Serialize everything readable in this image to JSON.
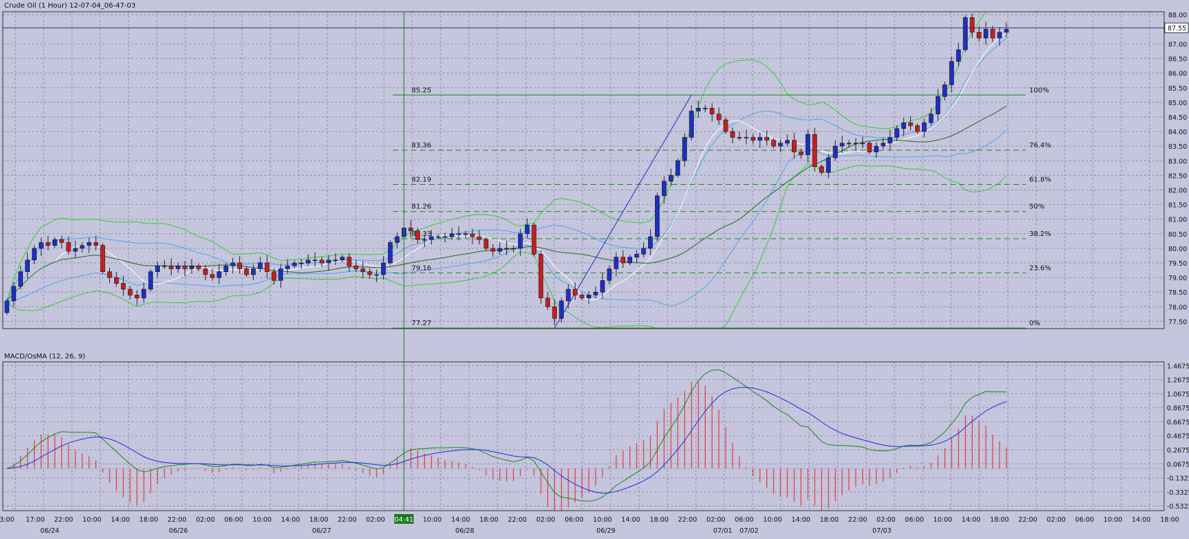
{
  "header": {
    "title": "Crude Oil (1 Hour) 12-07-04_06-47-03"
  },
  "macd_panel": {
    "title": "MACD/OsMA (12, 26, 9)"
  },
  "colors": {
    "background": "#c5c5dd",
    "up_candle": "#1e2fc4",
    "down_candle": "#c81e1e",
    "fib_line": "#188a18",
    "bollinger_outer": "#2fd02f",
    "bollinger_inner": "#4aa6f0",
    "sma_white": "#ffffff",
    "sma_dark_green": "#1d6b1d",
    "macd_line": "#178a17",
    "signal_line": "#1a2fd0",
    "osma_bars": "#e23a3a",
    "trend_line": "#1a2fb8"
  },
  "crosshair_time_label": "04:41",
  "current_price_label": "87.55",
  "chart_data": [
    {
      "type": "candlestick",
      "title": "Crude Oil (1 Hour) 12-07-04_06-47-03",
      "ylim": [
        77.25,
        88.1
      ],
      "y_ticks": [
        "88.00",
        "87.55",
        "87.00",
        "86.50",
        "86.00",
        "85.50",
        "85.00",
        "84.50",
        "84.00",
        "83.50",
        "83.00",
        "82.50",
        "82.00",
        "81.50",
        "81.00",
        "80.50",
        "80.00",
        "79.50",
        "79.00",
        "78.50",
        "78.00",
        "77.50"
      ],
      "x_tick_labels": [
        "3:00",
        "17:00",
        "22:00",
        "10:00",
        "14:00",
        "18:00",
        "22:00",
        "02:00",
        "06:00",
        "10:00",
        "14:00",
        "18:00",
        "22:00",
        "02:00",
        "04:41",
        "10:00",
        "14:00",
        "18:00",
        "22:00",
        "02:00",
        "06:00",
        "10:00",
        "14:00",
        "18:00",
        "22:00",
        "02:00",
        "06:00",
        "10:00",
        "14:00",
        "18:00",
        "22:00",
        "02:00",
        "06:00",
        "10:00",
        "14:00",
        "18:00",
        "22:00",
        "02:00",
        "06:00",
        "10:00",
        "14:00",
        "18:00"
      ],
      "date_labels": [
        "06/24",
        "06/26",
        "06/27",
        "06/28",
        "06/29",
        "07/01",
        "07/02",
        "07/03"
      ],
      "close_prices": [
        78.2,
        78.7,
        79.2,
        79.6,
        80.0,
        80.2,
        80.1,
        80.3,
        80.2,
        79.9,
        80.0,
        80.1,
        80.2,
        80.1,
        79.2,
        79.0,
        78.8,
        78.6,
        78.4,
        78.3,
        78.6,
        79.2,
        79.4,
        79.4,
        79.3,
        79.4,
        79.3,
        79.4,
        79.3,
        79.1,
        79.0,
        79.2,
        79.4,
        79.5,
        79.3,
        79.1,
        79.3,
        79.5,
        79.2,
        78.9,
        79.3,
        79.4,
        79.5,
        79.5,
        79.6,
        79.6,
        79.5,
        79.6,
        79.6,
        79.7,
        79.4,
        79.3,
        79.2,
        79.1,
        79.1,
        79.5,
        80.2,
        80.4,
        80.7,
        80.6,
        80.3,
        80.3,
        80.4,
        80.4,
        80.4,
        80.5,
        80.5,
        80.5,
        80.4,
        80.3,
        80.0,
        79.9,
        80.0,
        80.0,
        80.0,
        80.5,
        80.8,
        79.8,
        78.3,
        78.0,
        77.6,
        78.2,
        78.6,
        78.4,
        78.3,
        78.4,
        78.5,
        78.9,
        79.3,
        79.7,
        79.5,
        79.7,
        79.8,
        80.0,
        80.4,
        81.8,
        82.3,
        82.5,
        83.0,
        83.8,
        84.7,
        84.8,
        84.8,
        84.6,
        84.4,
        84.0,
        83.8,
        83.8,
        83.8,
        83.7,
        83.8,
        83.7,
        83.5,
        83.6,
        83.7,
        83.3,
        83.2,
        83.9,
        82.8,
        82.6,
        83.1,
        83.5,
        83.6,
        83.6,
        83.6,
        83.6,
        83.3,
        83.5,
        83.6,
        83.8,
        84.1,
        84.3,
        84.2,
        84.0,
        84.3,
        84.6,
        85.2,
        85.6,
        86.4,
        86.8,
        87.9,
        87.4,
        87.2,
        87.5,
        87.2,
        87.4,
        87.5
      ],
      "series": [
        {
          "name": "Price",
          "values": [
            78.2,
            78.7,
            79.2,
            79.6,
            80.0,
            80.2,
            80.1,
            80.3,
            80.2,
            79.9,
            80.0,
            80.1,
            80.2,
            80.1,
            79.2,
            79.0,
            78.8,
            78.6,
            78.4,
            78.3,
            78.6,
            79.2,
            79.4,
            79.4,
            79.3,
            79.4,
            79.3,
            79.4,
            79.3,
            79.1,
            79.0,
            79.2,
            79.4,
            79.5,
            79.3,
            79.1,
            79.3,
            79.5,
            79.2,
            78.9,
            79.3,
            79.4,
            79.5,
            79.5,
            79.6,
            79.6,
            79.5,
            79.6,
            79.6,
            79.7,
            79.4,
            79.3,
            79.2,
            79.1,
            79.1,
            79.5,
            80.2,
            80.4,
            80.7,
            80.6,
            80.3,
            80.3,
            80.4,
            80.4,
            80.4,
            80.5,
            80.5,
            80.5,
            80.4,
            80.3,
            80.0,
            79.9,
            80.0,
            80.0,
            80.0,
            80.5,
            80.8,
            79.8,
            78.3,
            78.0,
            77.6,
            78.2,
            78.6,
            78.4,
            78.3,
            78.4,
            78.5,
            78.9,
            79.3,
            79.7,
            79.5,
            79.7,
            79.8,
            80.0,
            80.4,
            81.8,
            82.3,
            82.5,
            83.0,
            83.8,
            84.7,
            84.8,
            84.8,
            84.6,
            84.4,
            84.0,
            83.8,
            83.8,
            83.8,
            83.7,
            83.8,
            83.7,
            83.5,
            83.6,
            83.7,
            83.3,
            83.2,
            83.9,
            82.8,
            82.6,
            83.1,
            83.5,
            83.6,
            83.6,
            83.6,
            83.6,
            83.3,
            83.5,
            83.6,
            83.8,
            84.1,
            84.3,
            84.2,
            84.0,
            84.3,
            84.6,
            85.2,
            85.6,
            86.4,
            86.8,
            87.9,
            87.4,
            87.2,
            87.5,
            87.2,
            87.4,
            87.5
          ]
        }
      ],
      "fibonacci": [
        {
          "price": "85.25",
          "level": "100%"
        },
        {
          "price": "83.36",
          "level": "76.4%"
        },
        {
          "price": "82.19",
          "level": "61.8%"
        },
        {
          "price": "81.26",
          "level": "50%"
        },
        {
          "price": "80.33",
          "level": "38.2%"
        },
        {
          "price": "79.16",
          "level": "23.6%"
        },
        {
          "price": "77.27",
          "level": "0%"
        }
      ],
      "legend": "none",
      "grid": true
    },
    {
      "type": "line",
      "title": "MACD/OsMA (12, 26, 9)",
      "ylim": [
        -0.6,
        1.52
      ],
      "y_ticks": [
        "1.4675",
        "1.2675",
        "1.0675",
        "0.8675",
        "0.6675",
        "0.4675",
        "0.2675",
        "0.0675",
        "-0.1325",
        "-0.3325",
        "-0.5325"
      ],
      "grid": true,
      "legend": "none"
    }
  ]
}
